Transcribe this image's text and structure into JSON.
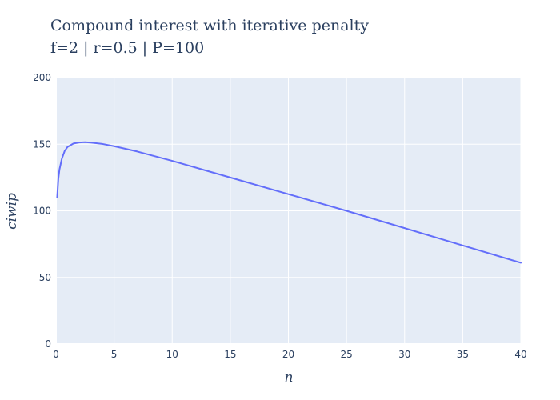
{
  "chart_data": {
    "type": "line",
    "title": "Compound interest with iterative penalty",
    "subtitle": "f=2 | r=0.5 | P=100",
    "xlabel": "n",
    "ylabel": "ciwip",
    "xlim": [
      0,
      40
    ],
    "ylim": [
      0,
      200
    ],
    "x_ticks": [
      0,
      5,
      10,
      15,
      20,
      25,
      30,
      35,
      40
    ],
    "y_ticks": [
      0,
      50,
      100,
      150,
      200
    ],
    "grid": true,
    "legend": "none",
    "colors": {
      "plot_bg": "#e5ecf6",
      "line": "#636efa",
      "text": "#2a3f5f",
      "grid": "#ffffff"
    },
    "series": [
      {
        "x": [
          0.1,
          0.2,
          0.3,
          0.5,
          0.75,
          1,
          1.5,
          2,
          2.5,
          3,
          4,
          5,
          7,
          10,
          15,
          20,
          25,
          30,
          35,
          40
        ],
        "values": [
          110,
          124,
          131,
          139,
          145,
          148,
          150.5,
          151.3,
          151.5,
          151.2,
          150.2,
          148.5,
          144.5,
          137.5,
          125,
          112.5,
          100,
          87,
          74,
          61
        ]
      }
    ]
  }
}
